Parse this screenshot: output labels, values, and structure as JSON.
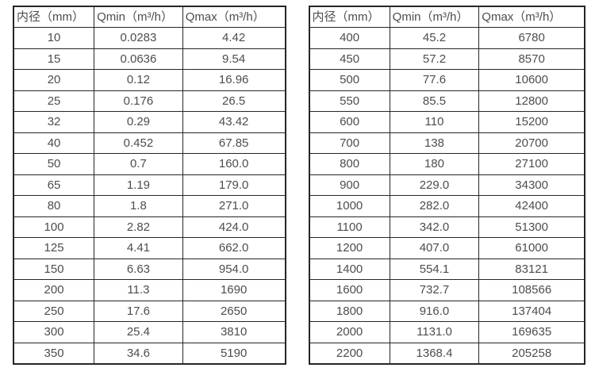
{
  "colors": {
    "background": "#ffffff",
    "border": "#262626",
    "text": "#4d4d4d"
  },
  "tables": [
    {
      "name": "small-diameters",
      "headers": [
        "内径（mm）",
        "Qmin（m³/h）",
        "Qmax（m³/h）"
      ],
      "rows": [
        [
          "10",
          "0.0283",
          "4.42"
        ],
        [
          "15",
          "0.0636",
          "9.54"
        ],
        [
          "20",
          "0.12",
          "16.96"
        ],
        [
          "25",
          "0.176",
          "26.5"
        ],
        [
          "32",
          "0.29",
          "43.42"
        ],
        [
          "40",
          "0.452",
          "67.85"
        ],
        [
          "50",
          "0.7",
          "160.0"
        ],
        [
          "65",
          "1.19",
          "179.0"
        ],
        [
          "80",
          "1.8",
          "271.0"
        ],
        [
          "100",
          "2.82",
          "424.0"
        ],
        [
          "125",
          "4.41",
          "662.0"
        ],
        [
          "150",
          "6.63",
          "954.0"
        ],
        [
          "200",
          "11.3",
          "1690"
        ],
        [
          "250",
          "17.6",
          "2650"
        ],
        [
          "300",
          "25.4",
          "3810"
        ],
        [
          "350",
          "34.6",
          "5190"
        ]
      ]
    },
    {
      "name": "large-diameters",
      "headers": [
        "内径（mm）",
        "Qmin（m³/h）",
        "Qmax（m³/h）"
      ],
      "rows": [
        [
          "400",
          "45.2",
          "6780"
        ],
        [
          "450",
          "57.2",
          "8570"
        ],
        [
          "500",
          "77.6",
          "10600"
        ],
        [
          "550",
          "85.5",
          "12800"
        ],
        [
          "600",
          "110",
          "15200"
        ],
        [
          "700",
          "138",
          "20700"
        ],
        [
          "800",
          "180",
          "27100"
        ],
        [
          "900",
          "229.0",
          "34300"
        ],
        [
          "1000",
          "282.0",
          "42400"
        ],
        [
          "1100",
          "342.0",
          "51300"
        ],
        [
          "1200",
          "407.0",
          "61000"
        ],
        [
          "1400",
          "554.1",
          "83121"
        ],
        [
          "1600",
          "732.7",
          "108566"
        ],
        [
          "1800",
          "916.0",
          "137404"
        ],
        [
          "2000",
          "1131.0",
          "169635"
        ],
        [
          "2200",
          "1368.4",
          "205258"
        ]
      ]
    }
  ]
}
